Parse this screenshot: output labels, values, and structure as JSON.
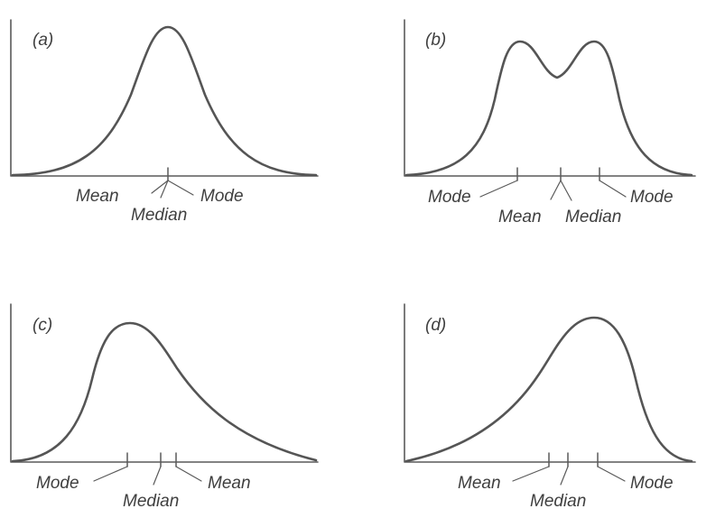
{
  "panels": {
    "a": {
      "label": "(a)",
      "shape": "symmetric-unimodal",
      "annotations": {
        "mean": "Mean",
        "median": "Median",
        "mode": "Mode"
      }
    },
    "b": {
      "label": "(b)",
      "shape": "symmetric-bimodal",
      "annotations": {
        "mode_left": "Mode",
        "mean": "Mean",
        "median": "Median",
        "mode_right": "Mode"
      }
    },
    "c": {
      "label": "(c)",
      "shape": "right-skewed",
      "annotations": {
        "mode": "Mode",
        "median": "Median",
        "mean": "Mean"
      }
    },
    "d": {
      "label": "(d)",
      "shape": "left-skewed",
      "annotations": {
        "mean": "Mean",
        "median": "Median",
        "mode": "Mode"
      }
    }
  }
}
